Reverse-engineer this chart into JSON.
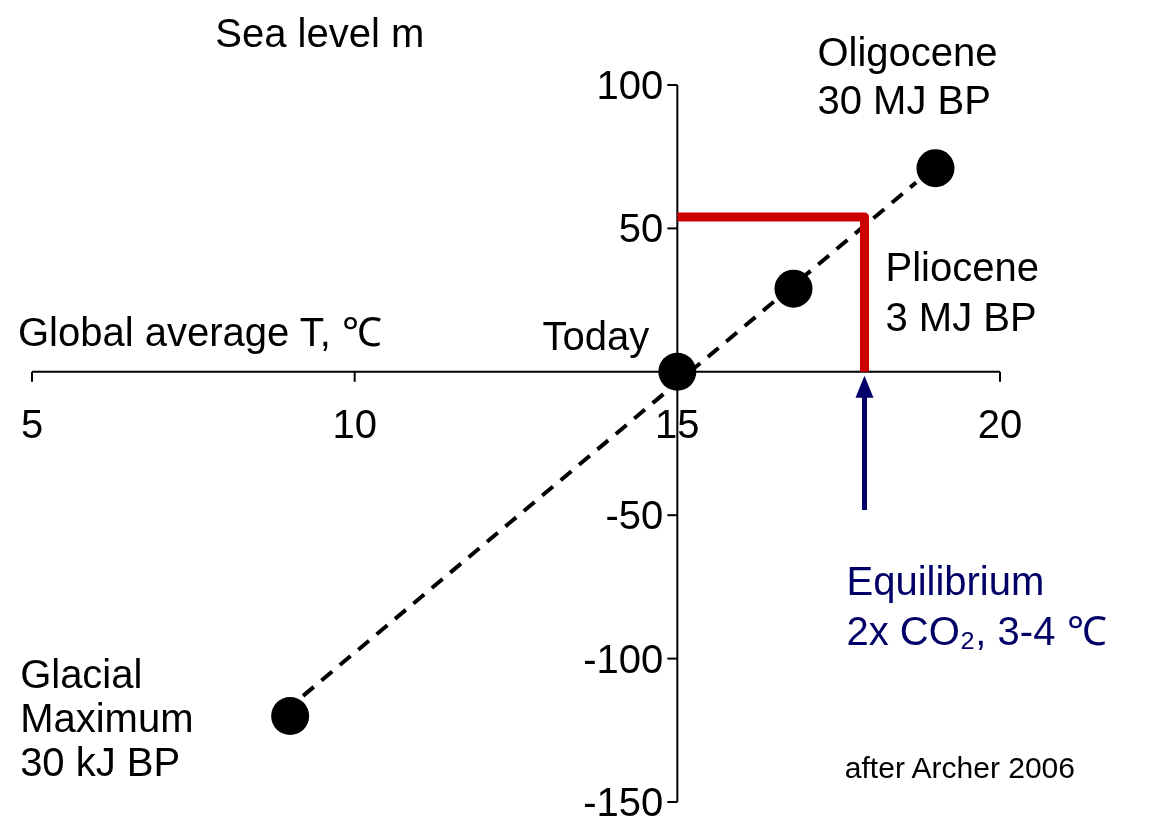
{
  "chart_data": {
    "type": "scatter",
    "xlabel": "Global average T, ℃",
    "ylabel": "Sea level m",
    "xlim": [
      5,
      20
    ],
    "xticks": [
      5,
      10,
      15,
      20
    ],
    "ylim": [
      -150,
      100
    ],
    "yticks": [
      -150,
      -100,
      -50,
      50,
      100
    ],
    "series": [
      {
        "type": "line",
        "line_style": "dashed",
        "marker": "none",
        "color": "#000000",
        "x": [
          9.2,
          18.7
        ],
        "values": [
          -113,
          66
        ]
      },
      {
        "type": "line",
        "line_style": "solid",
        "marker": "none",
        "color": "#cc0000",
        "x": [
          15,
          17.9,
          17.9
        ],
        "values": [
          54,
          54,
          0
        ]
      },
      {
        "marker": "circle",
        "color": "#000000",
        "x": [
          9,
          15,
          16.8,
          19
        ],
        "values": [
          -120,
          0,
          29,
          71
        ]
      }
    ],
    "annotations": [
      {
        "text": "Glacial\nMaximum\n30 kJ BP",
        "x": 9,
        "y": -120
      },
      {
        "text": "Today",
        "x": 15,
        "y": 0
      },
      {
        "text": "Pliocene\n3 MJ BP",
        "x": 16.8,
        "y": 29
      },
      {
        "text": "Oligocene\n30 MJ BP",
        "x": 19,
        "y": 71
      },
      "Equilibrium\n2x CO₂, 3-4 ℃",
      "after Archer 2006"
    ]
  }
}
